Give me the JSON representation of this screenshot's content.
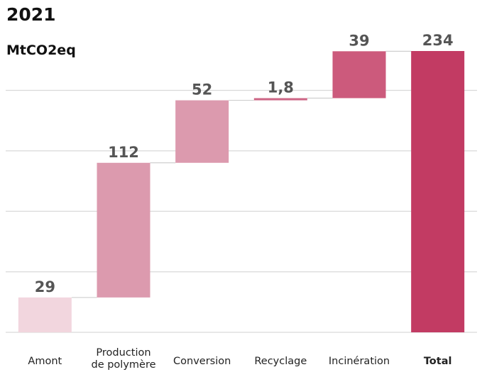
{
  "chart_data": {
    "type": "bar",
    "title": "2021",
    "subtitle": "MtCO2eq",
    "categories": [
      "Amont",
      "Production de polymère",
      "Conversion",
      "Recyclage",
      "Incinération",
      "Total"
    ],
    "category_lines": [
      [
        "Amont"
      ],
      [
        "Production",
        "de polymère"
      ],
      [
        "Conversion"
      ],
      [
        "Recyclage"
      ],
      [
        "Incinération"
      ],
      [
        "Total"
      ]
    ],
    "values": [
      29,
      112,
      52,
      1.8,
      39,
      234
    ],
    "value_labels": [
      "29",
      "112",
      "52",
      "1,8",
      "39",
      "234"
    ],
    "ylim": [
      0,
      234
    ],
    "grid": true,
    "colors": [
      "#f2d6de",
      "#dc9aae",
      "#dc9aae",
      "#cc6585",
      "#cc5a7c",
      "#c23b63"
    ]
  }
}
